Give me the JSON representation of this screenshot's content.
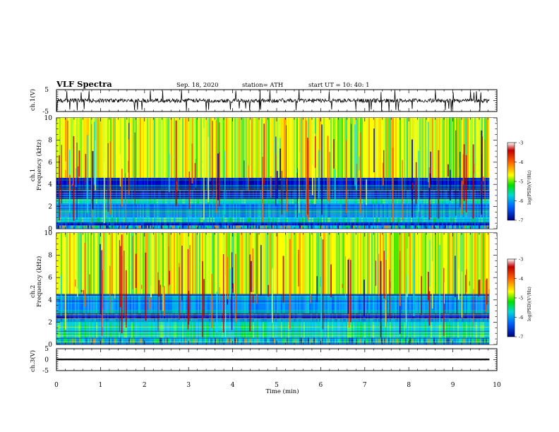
{
  "header": {
    "title": "VLF Spectra",
    "date": "Sep. 18, 2020",
    "station": "station= ATH",
    "start": "start  UT =   10: 40: 1"
  },
  "chart_data": [
    {
      "type": "line",
      "panel": "ch1-waveform",
      "ylabel": "ch.1(V)",
      "ylim": [
        -5,
        5
      ],
      "yticks": [
        "5",
        "-5"
      ],
      "x_range_min": [
        0,
        9.83
      ],
      "trace_level_volts": 0,
      "trace_spread_volts": [
        -1.5,
        1.5
      ],
      "color": "#000000"
    },
    {
      "type": "heatmap",
      "panel": "ch1-spectrogram",
      "ylabel_top": "ch.1",
      "ylabel": "Frequency (kHz)",
      "ylim": [
        0,
        10
      ],
      "yticks": [
        "0",
        "2",
        "4",
        "6",
        "8",
        "10"
      ],
      "x_range_min": [
        0,
        9.83
      ],
      "bands_khz": [
        {
          "from": 0,
          "to": 0.3,
          "level": "mixed"
        },
        {
          "from": 0.3,
          "to": 0.6,
          "level": "low"
        },
        {
          "from": 0.6,
          "to": 1.0,
          "level": "mid"
        },
        {
          "from": 1.0,
          "to": 2.2,
          "level": "low-mid"
        },
        {
          "from": 2.2,
          "to": 2.7,
          "level": "mid"
        },
        {
          "from": 2.7,
          "to": 3.5,
          "level": "low"
        },
        {
          "from": 3.5,
          "to": 4.6,
          "level": "low"
        },
        {
          "from": 4.6,
          "to": 10,
          "level": "high"
        }
      ],
      "colorbar": {
        "label": "log(PSD)(V²/Hz)",
        "min": -7,
        "max": -3,
        "ticks": [
          "-3",
          "-4",
          "-5",
          "-6",
          "-7"
        ],
        "colors": [
          "#ffffff",
          "#c00000",
          "#ff6000",
          "#ffff00",
          "#00e000",
          "#00d8d8",
          "#0060ff",
          "#000080"
        ]
      }
    },
    {
      "type": "heatmap",
      "panel": "ch2-spectrogram",
      "ylabel_top": "ch.2",
      "ylabel": "Frequency (kHz)",
      "ylim": [
        0,
        10
      ],
      "yticks": [
        "0",
        "2",
        "4",
        "6",
        "8",
        "10"
      ],
      "x_range_min": [
        0,
        9.83
      ],
      "bands_khz": [
        {
          "from": 0,
          "to": 0.6,
          "level": "mixed"
        },
        {
          "from": 0.6,
          "to": 2.0,
          "level": "mid"
        },
        {
          "from": 2.0,
          "to": 2.3,
          "level": "low-mid"
        },
        {
          "from": 2.3,
          "to": 2.8,
          "level": "low"
        },
        {
          "from": 2.8,
          "to": 4.5,
          "level": "low-mid"
        },
        {
          "from": 4.5,
          "to": 10,
          "level": "high"
        }
      ],
      "colorbar": {
        "label": "log(PSD)(V²/Hz)",
        "min": -7,
        "max": -3,
        "ticks": [
          "-3",
          "-4",
          "-5",
          "-6",
          "-7"
        ],
        "colors": [
          "#ffffff",
          "#c00000",
          "#ff6000",
          "#ffff00",
          "#00e000",
          "#00d8d8",
          "#0060ff",
          "#000080"
        ]
      }
    },
    {
      "type": "line",
      "panel": "ch3-waveform",
      "ylabel": "ch.3(V)",
      "ylim": [
        -5,
        5
      ],
      "yticks": [
        "5",
        "0",
        "-5"
      ],
      "x_range_min": [
        0,
        9.83
      ],
      "trace_level_volts": 0.1,
      "trace_spread_volts": [
        -0.3,
        0.4
      ],
      "color": "#000000"
    }
  ],
  "xaxis": {
    "label": "Time (min)",
    "ticks": [
      "0",
      "1",
      "2",
      "3",
      "4",
      "5",
      "6",
      "7",
      "8",
      "9",
      "10"
    ],
    "min": 0,
    "max": 10
  }
}
